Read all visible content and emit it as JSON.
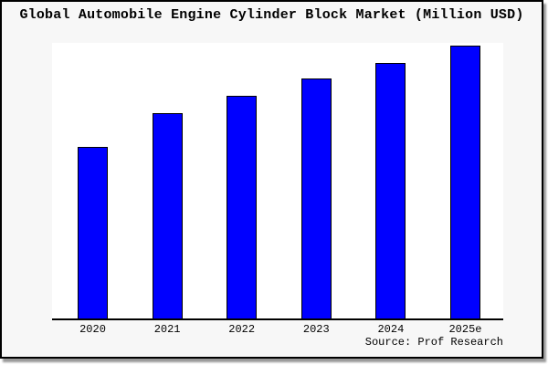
{
  "chart_data": {
    "type": "bar",
    "title": "Global Automobile Engine Cylinder Block Market (Million USD)",
    "categories": [
      "2020",
      "2021",
      "2022",
      "2023",
      "2024",
      "2025e"
    ],
    "values": [
      62.9,
      75.4,
      81.5,
      87.9,
      93.8,
      100
    ],
    "value_note": "relative estimates, 2025e = 100; no y-axis ticks or gridlines are shown",
    "xlabel": "",
    "ylabel": "",
    "ylim": [
      0,
      101
    ],
    "grid": false,
    "legend": false,
    "source": "Source: Prof Research",
    "bar_color": "#0000ff",
    "bar_edge_color": "#000000"
  },
  "colors": {
    "canvas_background": "#f7f7f7",
    "plot_background": "#ffffff",
    "axis": "#000000",
    "text": "#000000",
    "frame_border": "#000000",
    "frame_shadow": "#999999"
  }
}
